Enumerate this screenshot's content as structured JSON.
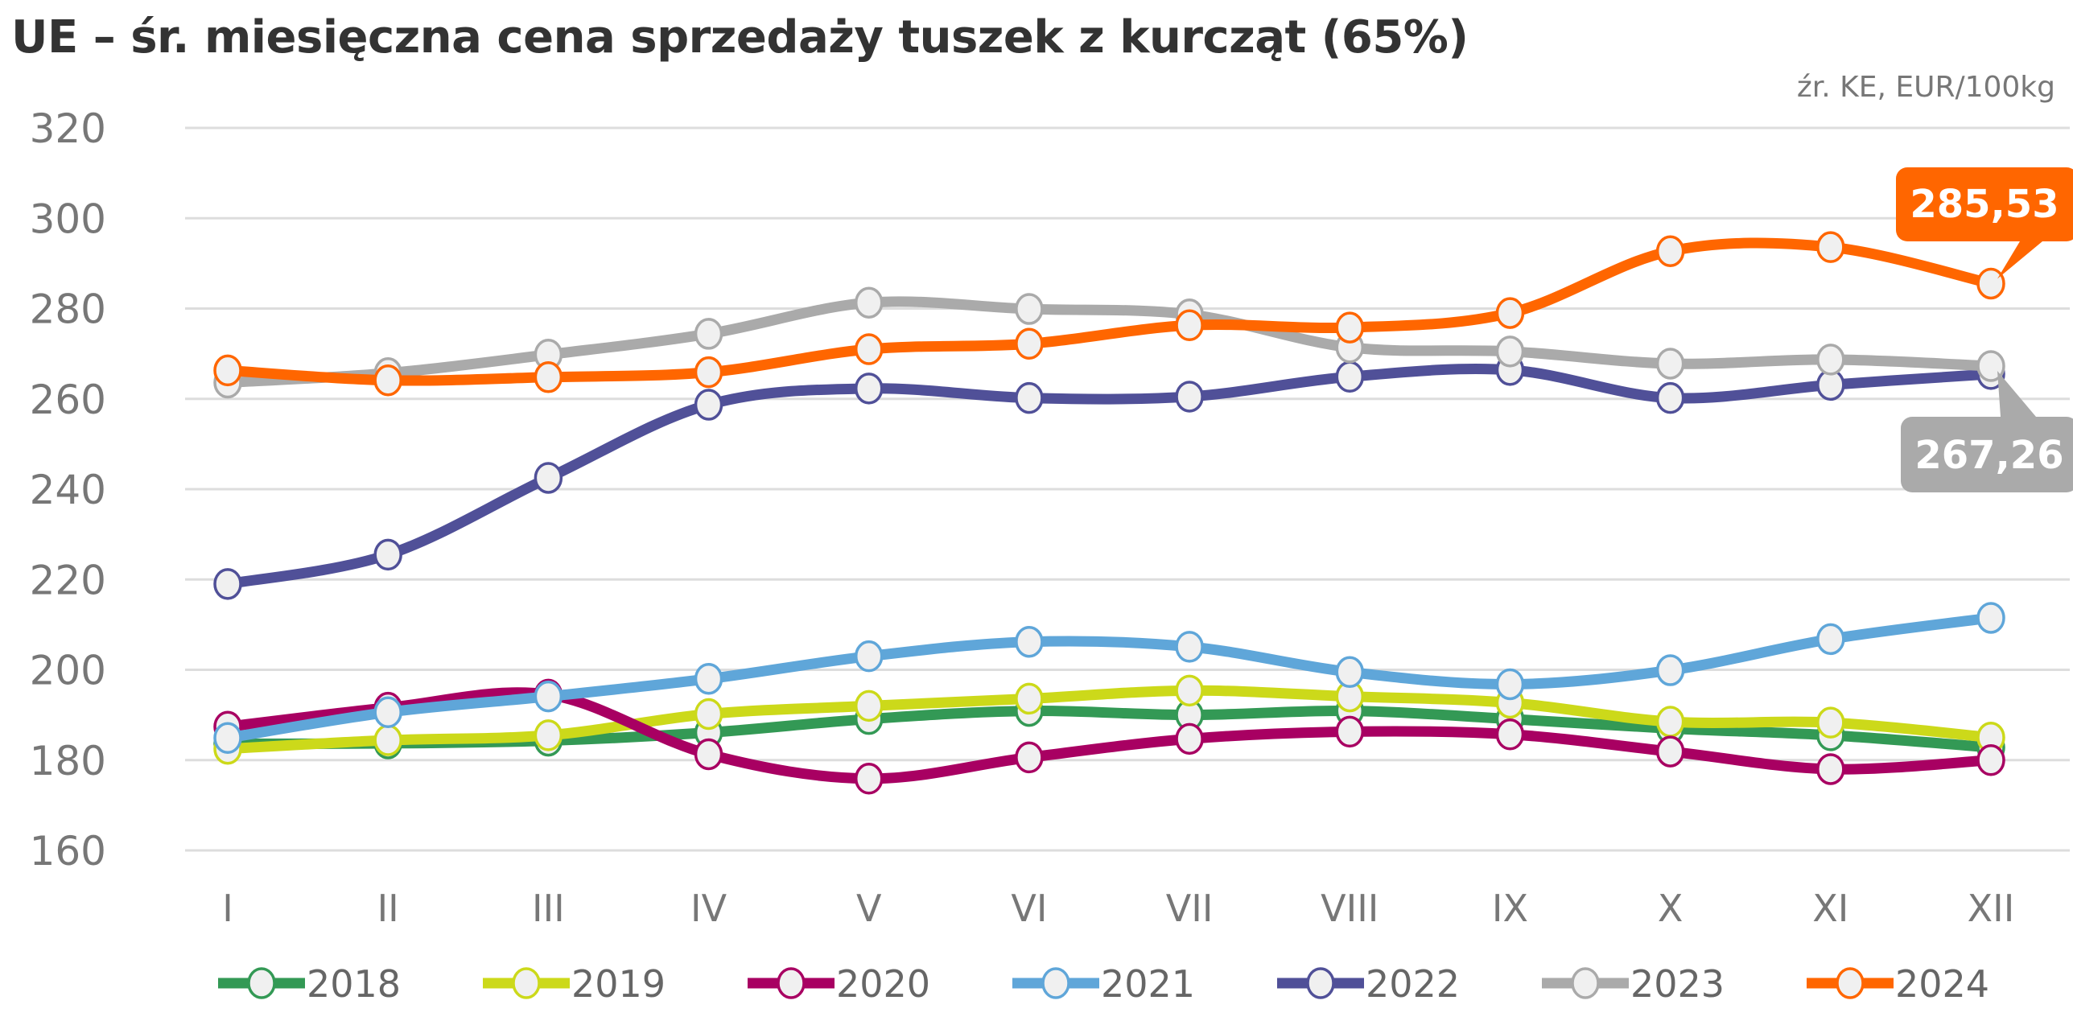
{
  "chart_data": {
    "type": "line",
    "title": "UE – śr. miesięczna cena sprzedaży tuszek z kurcząt (65%)",
    "subtitle": "źr. KE, EUR/100kg",
    "xlabel": "",
    "ylabel": "",
    "categories": [
      "I",
      "II",
      "III",
      "IV",
      "V",
      "VI",
      "VII",
      "VIII",
      "IX",
      "X",
      "XI",
      "XII"
    ],
    "ylim": [
      160,
      320
    ],
    "yticks": [
      160,
      180,
      200,
      220,
      240,
      260,
      280,
      300,
      320
    ],
    "grid": true,
    "legend_position": "bottom",
    "series": [
      {
        "name": "2018",
        "color": "#339955",
        "values": [
          183.6,
          183.7,
          184.3,
          186.1,
          189.1,
          190.9,
          190.0,
          190.9,
          189.1,
          187.0,
          185.5,
          182.8
        ]
      },
      {
        "name": "2019",
        "color": "#ccd91a",
        "values": [
          182.5,
          184.4,
          185.5,
          190.2,
          192.0,
          193.6,
          195.4,
          194.1,
          192.7,
          188.5,
          188.3,
          185.0
        ]
      },
      {
        "name": "2020",
        "color": "#a80062",
        "values": [
          187.4,
          191.6,
          194.5,
          181.3,
          175.9,
          180.6,
          184.7,
          186.3,
          185.7,
          181.9,
          178.0,
          180.0
        ]
      },
      {
        "name": "2021",
        "color": "#5fa6d9",
        "values": [
          184.9,
          190.6,
          194.1,
          198.0,
          203.0,
          206.2,
          205.1,
          199.5,
          196.8,
          199.9,
          206.8,
          211.5
        ]
      },
      {
        "name": "2022",
        "color": "#505098",
        "values": [
          219.0,
          225.5,
          242.5,
          258.7,
          262.3,
          260.2,
          260.5,
          264.9,
          266.4,
          260.2,
          263.1,
          265.5
        ]
      },
      {
        "name": "2023",
        "color": "#aaaaaa",
        "values": [
          263.6,
          265.7,
          269.8,
          274.4,
          281.3,
          279.9,
          278.7,
          271.4,
          270.5,
          267.8,
          268.7,
          267.26
        ]
      },
      {
        "name": "2024",
        "color": "#ff6600",
        "values": [
          266.3,
          264.1,
          264.8,
          265.9,
          271.0,
          272.2,
          276.3,
          275.8,
          279.0,
          292.7,
          293.6,
          285.53
        ]
      }
    ],
    "annotations": [
      {
        "series": "2024",
        "category": "XII",
        "text": "285,53",
        "color": "#ff6600"
      },
      {
        "series": "2023",
        "category": "XII",
        "text": "267,26",
        "color": "#aaaaaa"
      }
    ]
  }
}
